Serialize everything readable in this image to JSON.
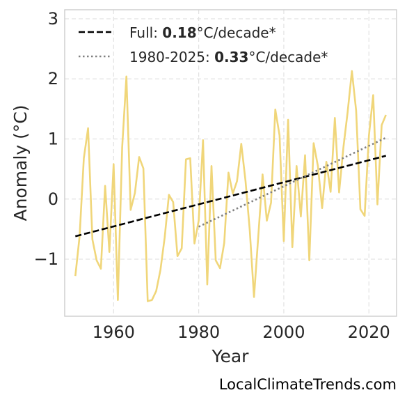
{
  "chart_data": {
    "type": "line",
    "xlabel": "Year",
    "ylabel": "Anomaly (°C)",
    "xlim": [
      1948.5,
      2026.5
    ],
    "ylim": [
      -1.95,
      3.15
    ],
    "xticks": [
      1960,
      1980,
      2000,
      2020
    ],
    "yticks": [
      3,
      2,
      1,
      0,
      -1
    ],
    "ytick_labels": [
      "3",
      "2",
      "1",
      "0",
      "−1"
    ],
    "grid": true,
    "legend_position": "top-left",
    "series": [
      {
        "color": "#f0d67a",
        "x": [
          1951,
          1952,
          1953,
          1954,
          1955,
          1956,
          1957,
          1958,
          1959,
          1960,
          1961,
          1962,
          1963,
          1964,
          1965,
          1966,
          1967,
          1968,
          1969,
          1970,
          1971,
          1972,
          1973,
          1974,
          1975,
          1976,
          1977,
          1978,
          1979,
          1980,
          1981,
          1982,
          1983,
          1984,
          1985,
          1986,
          1987,
          1988,
          1989,
          1990,
          1991,
          1992,
          1993,
          1994,
          1995,
          1996,
          1997,
          1998,
          1999,
          2000,
          2001,
          2002,
          2003,
          2004,
          2005,
          2006,
          2007,
          2008,
          2009,
          2010,
          2011,
          2012,
          2013,
          2014,
          2015,
          2016,
          2017,
          2018,
          2019,
          2020,
          2021,
          2022,
          2023,
          2024
        ],
        "values": [
          -1.28,
          -0.62,
          0.68,
          1.18,
          -0.67,
          -1.02,
          -1.16,
          0.22,
          -0.88,
          0.58,
          -1.68,
          0.86,
          2.04,
          -0.18,
          0.1,
          0.7,
          0.51,
          -1.7,
          -1.68,
          -1.53,
          -1.18,
          -0.64,
          0.07,
          -0.05,
          -0.95,
          -0.82,
          0.66,
          0.68,
          -0.74,
          -0.36,
          0.98,
          -1.42,
          0.55,
          -1.02,
          -1.15,
          -0.73,
          0.44,
          0.09,
          0.3,
          0.92,
          0.3,
          -0.52,
          -1.63,
          -0.61,
          0.41,
          -0.36,
          -0.06,
          1.49,
          1.06,
          -0.7,
          1.32,
          -0.8,
          0.55,
          -0.29,
          0.73,
          -1.02,
          0.93,
          0.55,
          -0.15,
          0.62,
          0.12,
          1.35,
          0.11,
          0.86,
          1.45,
          2.13,
          1.47,
          -0.17,
          -0.28,
          1.06,
          1.73,
          -0.09,
          1.23,
          1.4
        ]
      }
    ],
    "trends": [
      {
        "label_prefix": "Full: ",
        "label_value": "0.18",
        "label_suffix": "°C/decade*",
        "style": "dashed",
        "color": "#000000",
        "x": [
          1951,
          2024
        ],
        "values": [
          -0.62,
          0.72
        ]
      },
      {
        "label_prefix": "1980-2025: ",
        "label_value": "0.33",
        "label_suffix": "°C/decade*",
        "style": "dotted",
        "color": "#808080",
        "x": [
          1980,
          2024
        ],
        "values": [
          -0.46,
          1.02
        ]
      }
    ]
  },
  "footer": "LocalClimateTrends.com"
}
